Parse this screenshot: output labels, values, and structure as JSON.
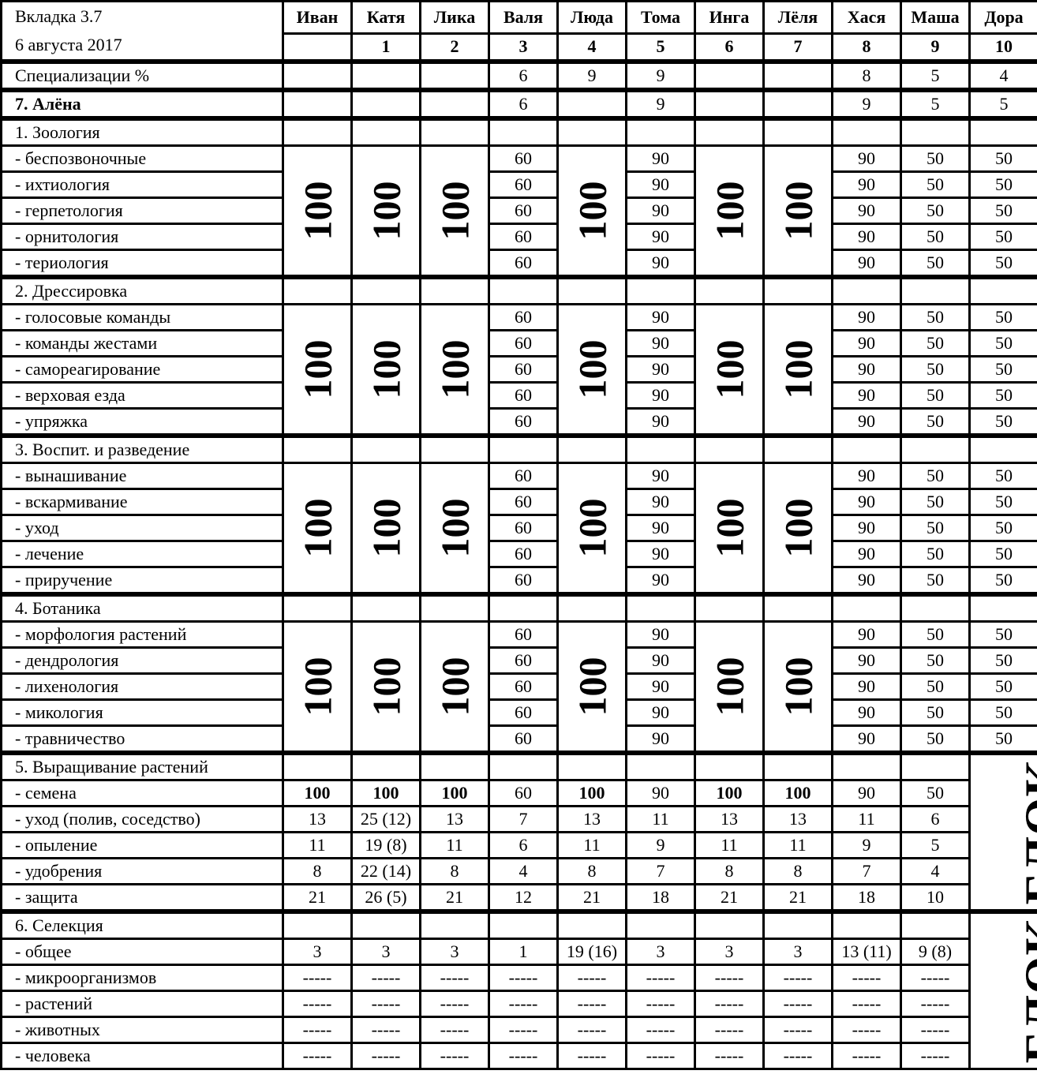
{
  "header": {
    "tab": "Вкладка 3.7",
    "date": "6 августа 2017"
  },
  "columns": [
    {
      "name": "Иван",
      "num": ""
    },
    {
      "name": "Катя",
      "num": "1"
    },
    {
      "name": "Лика",
      "num": "2"
    },
    {
      "name": "Валя",
      "num": "3"
    },
    {
      "name": "Люда",
      "num": "4"
    },
    {
      "name": "Тома",
      "num": "5"
    },
    {
      "name": "Инга",
      "num": "6"
    },
    {
      "name": "Лёля",
      "num": "7"
    },
    {
      "name": "Хася",
      "num": "8"
    },
    {
      "name": "Маша",
      "num": "9"
    },
    {
      "name": "Дора",
      "num": "10"
    }
  ],
  "spec_row": {
    "label": "Специализации %",
    "values": [
      "",
      "",
      "",
      "6",
      "9",
      "9",
      "",
      "",
      "8",
      "5",
      "4"
    ]
  },
  "alena_row": {
    "label": "7. Алёна",
    "values": [
      "",
      "",
      "",
      "6",
      "",
      "9",
      "",
      "",
      "9",
      "5",
      "5"
    ]
  },
  "sections": [
    {
      "title": "1. Зоология",
      "items": [
        "- беспозвоночные",
        "- ихтиология",
        "- герпетология",
        "- орнитология",
        "- териология"
      ],
      "cols": [
        {
          "big": "100"
        },
        {
          "big": "100"
        },
        {
          "big": "100"
        },
        {
          "vals": [
            "60",
            "60",
            "60",
            "60",
            "60"
          ]
        },
        {
          "big": "100"
        },
        {
          "vals": [
            "90",
            "90",
            "90",
            "90",
            "90"
          ]
        },
        {
          "big": "100"
        },
        {
          "big": "100"
        },
        {
          "vals": [
            "90",
            "90",
            "90",
            "90",
            "90"
          ]
        },
        {
          "vals": [
            "50",
            "50",
            "50",
            "50",
            "50"
          ]
        },
        {
          "vals": [
            "50",
            "50",
            "50",
            "50",
            "50"
          ]
        }
      ]
    },
    {
      "title": "2. Дрессировка",
      "items": [
        "- голосовые команды",
        "- команды жестами",
        "- самореагирование",
        "- верховая езда",
        "- упряжка"
      ],
      "cols": [
        {
          "big": "100"
        },
        {
          "big": "100"
        },
        {
          "big": "100"
        },
        {
          "vals": [
            "60",
            "60",
            "60",
            "60",
            "60"
          ]
        },
        {
          "big": "100"
        },
        {
          "vals": [
            "90",
            "90",
            "90",
            "90",
            "90"
          ]
        },
        {
          "big": "100"
        },
        {
          "big": "100"
        },
        {
          "vals": [
            "90",
            "90",
            "90",
            "90",
            "90"
          ]
        },
        {
          "vals": [
            "50",
            "50",
            "50",
            "50",
            "50"
          ]
        },
        {
          "vals": [
            "50",
            "50",
            "50",
            "50",
            "50"
          ]
        }
      ]
    },
    {
      "title": "3. Воспит. и разведение",
      "items": [
        "- вынашивание",
        "- вскармивание",
        "- уход",
        "- лечение",
        "- приручение"
      ],
      "cols": [
        {
          "big": "100"
        },
        {
          "big": "100"
        },
        {
          "big": "100"
        },
        {
          "vals": [
            "60",
            "60",
            "60",
            "60",
            "60"
          ]
        },
        {
          "big": "100"
        },
        {
          "vals": [
            "90",
            "90",
            "90",
            "90",
            "90"
          ]
        },
        {
          "big": "100"
        },
        {
          "big": "100"
        },
        {
          "vals": [
            "90",
            "90",
            "90",
            "90",
            "90"
          ]
        },
        {
          "vals": [
            "50",
            "50",
            "50",
            "50",
            "50"
          ]
        },
        {
          "vals": [
            "50",
            "50",
            "50",
            "50",
            "50"
          ]
        }
      ]
    },
    {
      "title": "4. Ботаника",
      "items": [
        "- морфология растений",
        "- дендрология",
        "- лихенология",
        "- микология",
        "- травничество"
      ],
      "cols": [
        {
          "big": "100"
        },
        {
          "big": "100"
        },
        {
          "big": "100"
        },
        {
          "vals": [
            "60",
            "60",
            "60",
            "60",
            "60"
          ]
        },
        {
          "big": "100"
        },
        {
          "vals": [
            "90",
            "90",
            "90",
            "90",
            "90"
          ]
        },
        {
          "big": "100"
        },
        {
          "big": "100"
        },
        {
          "vals": [
            "90",
            "90",
            "90",
            "90",
            "90"
          ]
        },
        {
          "vals": [
            "50",
            "50",
            "50",
            "50",
            "50"
          ]
        },
        {
          "vals": [
            "50",
            "50",
            "50",
            "50",
            "50"
          ]
        }
      ]
    }
  ],
  "grow": {
    "title": "5. Выращивание растений",
    "block": "БЛОК",
    "rows": [
      {
        "label": "- семена",
        "values": [
          "100",
          "100",
          "100",
          "60",
          "100",
          "90",
          "100",
          "100",
          "90",
          "50"
        ],
        "bold": [
          true,
          true,
          true,
          false,
          true,
          false,
          true,
          true,
          false,
          false
        ]
      },
      {
        "label": "- уход (полив, соседство)",
        "values": [
          "13",
          "25 (12)",
          "13",
          "7",
          "13",
          "11",
          "13",
          "13",
          "11",
          "6"
        ]
      },
      {
        "label": "- опыление",
        "values": [
          "11",
          "19 (8)",
          "11",
          "6",
          "11",
          "9",
          "11",
          "11",
          "9",
          "5"
        ]
      },
      {
        "label": "- удобрения",
        "values": [
          "8",
          "22 (14)",
          "8",
          "4",
          "8",
          "7",
          "8",
          "8",
          "7",
          "4"
        ]
      },
      {
        "label": "- защита",
        "values": [
          "21",
          "26 (5)",
          "21",
          "12",
          "21",
          "18",
          "21",
          "21",
          "18",
          "10"
        ]
      }
    ]
  },
  "selection": {
    "title": "6. Селекция",
    "block": "БЛОК",
    "rows": [
      {
        "label": "- общее",
        "values": [
          "3",
          "3",
          "3",
          "1",
          "19 (16)",
          "3",
          "3",
          "3",
          "13 (11)",
          "9 (8)"
        ]
      },
      {
        "label": "- микроорганизмов",
        "values": [
          "-----",
          "-----",
          "-----",
          "-----",
          "-----",
          "-----",
          "-----",
          "-----",
          "-----",
          "-----"
        ]
      },
      {
        "label": "- растений",
        "values": [
          "-----",
          "-----",
          "-----",
          "-----",
          "-----",
          "-----",
          "-----",
          "-----",
          "-----",
          "-----"
        ]
      },
      {
        "label": "- животных",
        "values": [
          "-----",
          "-----",
          "-----",
          "-----",
          "-----",
          "-----",
          "-----",
          "-----",
          "-----",
          "-----"
        ]
      },
      {
        "label": "- человека",
        "values": [
          "-----",
          "-----",
          "-----",
          "-----",
          "-----",
          "-----",
          "-----",
          "-----",
          "-----",
          "-----"
        ]
      }
    ]
  }
}
